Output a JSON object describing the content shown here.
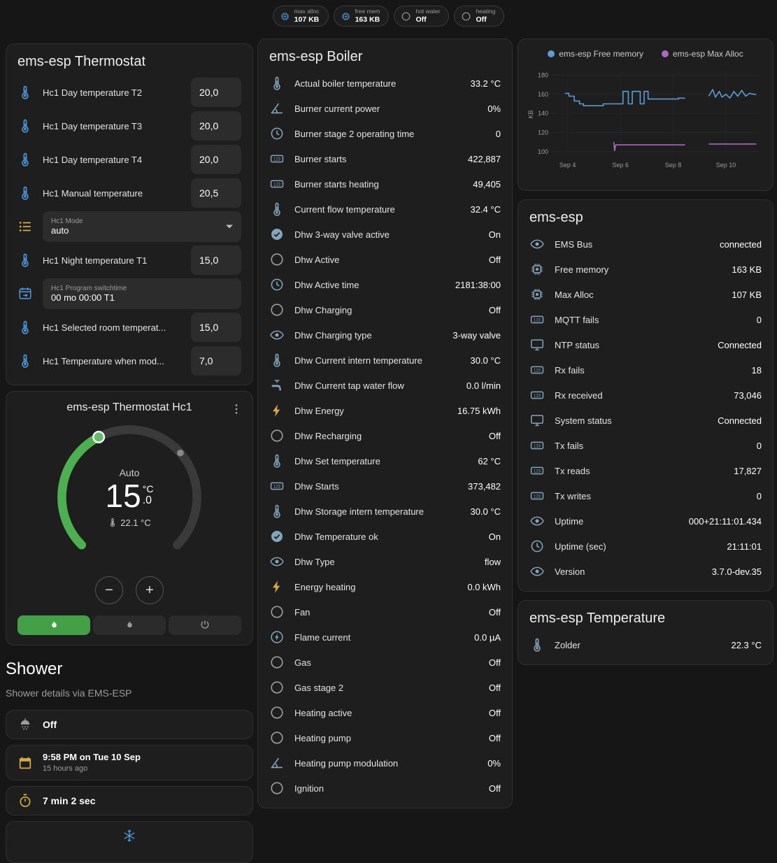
{
  "colors": {
    "icon_blue": "#4d9be0",
    "icon_muted": "#85a5bd",
    "icon_gray": "#9b9b9b",
    "icon_amber": "#d9ab42",
    "accent_green": "#43a047",
    "dial_green": "#4caf50",
    "chart_blue": "#5c9bd6",
    "chart_purple": "#aa68c2"
  },
  "topbar": {
    "chips": [
      {
        "icon": "chip",
        "c": "blue",
        "label": "max alloc",
        "value": "107 KB"
      },
      {
        "icon": "chip",
        "c": "blue",
        "label": "free mem",
        "value": "163 KB"
      },
      {
        "icon": "circle",
        "c": "gray",
        "label": "hot water",
        "value": "Off"
      },
      {
        "icon": "circle",
        "c": "gray",
        "label": "heating",
        "value": "Off"
      }
    ]
  },
  "thermostat_card": {
    "title": "ems-esp Thermostat",
    "rows": [
      {
        "type": "number",
        "icon": "thermometer",
        "c": "blue",
        "label": "Hc1 Day temperature T2",
        "value": "20,0"
      },
      {
        "type": "number",
        "icon": "thermometer",
        "c": "blue",
        "label": "Hc1 Day temperature T3",
        "value": "20,0"
      },
      {
        "type": "number",
        "icon": "thermometer",
        "c": "blue",
        "label": "Hc1 Day temperature T4",
        "value": "20,0"
      },
      {
        "type": "number",
        "icon": "thermometer",
        "c": "blue",
        "label": "Hc1 Manual temperature",
        "value": "20,5"
      },
      {
        "type": "select",
        "icon": "list",
        "c": "amber",
        "field_label": "Hc1 Mode",
        "value": "auto"
      },
      {
        "type": "number",
        "icon": "thermometer",
        "c": "blue",
        "label": "Hc1 Night temperature T1",
        "value": "15,0"
      },
      {
        "type": "text",
        "icon": "program",
        "c": "blue",
        "field_label": "Hc1 Program switchtime",
        "value": "00 mo 00:00 T1"
      },
      {
        "type": "number",
        "icon": "thermometer",
        "c": "blue",
        "label": "Hc1 Selected room temperat...",
        "value": "15,0"
      },
      {
        "type": "number",
        "icon": "thermometer",
        "c": "blue",
        "label": "Hc1 Temperature when mod...",
        "value": "7,0"
      }
    ]
  },
  "hc1_card": {
    "title": "ems-esp Thermostat Hc1",
    "mode_label": "Auto",
    "target_whole": "15",
    "target_unit": "°C",
    "target_decimal": ".0",
    "current_temperature": "22.1 °C",
    "modes": [
      {
        "name": "auto",
        "icon": "flame",
        "active": true
      },
      {
        "name": "heat",
        "icon": "flame",
        "active": false
      },
      {
        "name": "off",
        "icon": "power",
        "active": false
      }
    ]
  },
  "shower": {
    "title": "Shower",
    "subtitle": "Shower details via EMS-ESP",
    "state": "Off",
    "last_time": "9:58 PM on Tue 10 Sep",
    "last_relative": "15 hours ago",
    "duration": "7 min 2 sec"
  },
  "boiler": {
    "title": "ems-esp Boiler",
    "rows": [
      {
        "icon": "thermometer",
        "c": "muted",
        "label": "Actual boiler temperature",
        "value": "33.2 °C"
      },
      {
        "icon": "angle",
        "c": "muted",
        "label": "Burner current power",
        "value": "0%"
      },
      {
        "icon": "clock",
        "c": "muted",
        "label": "Burner stage 2 operating time",
        "value": "0"
      },
      {
        "icon": "counter",
        "c": "muted",
        "label": "Burner starts",
        "value": "422,887"
      },
      {
        "icon": "counter",
        "c": "muted",
        "label": "Burner starts heating",
        "value": "49,405"
      },
      {
        "icon": "thermometer",
        "c": "muted",
        "label": "Current flow temperature",
        "value": "32.4 °C"
      },
      {
        "icon": "check-circle",
        "c": "muted",
        "label": "Dhw 3-way valve active",
        "value": "On"
      },
      {
        "icon": "circle",
        "c": "gray",
        "label": "Dhw Active",
        "value": "Off"
      },
      {
        "icon": "clock",
        "c": "muted",
        "label": "Dhw Active time",
        "value": "2181:38:00"
      },
      {
        "icon": "circle",
        "c": "gray",
        "label": "Dhw Charging",
        "value": "Off"
      },
      {
        "icon": "eye",
        "c": "muted",
        "label": "Dhw Charging type",
        "value": "3-way valve"
      },
      {
        "icon": "thermometer",
        "c": "muted",
        "label": "Dhw Current intern temperature",
        "value": "30.0 °C"
      },
      {
        "icon": "tap",
        "c": "muted",
        "label": "Dhw Current tap water flow",
        "value": "0.0 l/min"
      },
      {
        "icon": "bolt",
        "c": "amber",
        "label": "Dhw Energy",
        "value": "16.75 kWh"
      },
      {
        "icon": "circle",
        "c": "gray",
        "label": "Dhw Recharging",
        "value": "Off"
      },
      {
        "icon": "thermometer",
        "c": "muted",
        "label": "Dhw Set temperature",
        "value": "62 °C"
      },
      {
        "icon": "counter",
        "c": "muted",
        "label": "Dhw Starts",
        "value": "373,482"
      },
      {
        "icon": "thermometer",
        "c": "muted",
        "label": "Dhw Storage intern temperature",
        "value": "30.0 °C"
      },
      {
        "icon": "check-circle",
        "c": "muted",
        "label": "Dhw Temperature ok",
        "value": "On"
      },
      {
        "icon": "eye",
        "c": "muted",
        "label": "Dhw Type",
        "value": "flow"
      },
      {
        "icon": "bolt",
        "c": "amber",
        "label": "Energy heating",
        "value": "0.0 kWh"
      },
      {
        "icon": "circle",
        "c": "gray",
        "label": "Fan",
        "value": "Off"
      },
      {
        "icon": "flash-circle",
        "c": "muted",
        "label": "Flame current",
        "value": "0.0 µA"
      },
      {
        "icon": "circle",
        "c": "gray",
        "label": "Gas",
        "value": "Off"
      },
      {
        "icon": "circle",
        "c": "gray",
        "label": "Gas stage 2",
        "value": "Off"
      },
      {
        "icon": "circle",
        "c": "gray",
        "label": "Heating active",
        "value": "Off"
      },
      {
        "icon": "circle",
        "c": "gray",
        "label": "Heating pump",
        "value": "Off"
      },
      {
        "icon": "angle",
        "c": "muted",
        "label": "Heating pump modulation",
        "value": "0%"
      },
      {
        "icon": "circle",
        "c": "gray",
        "label": "Ignition",
        "value": "Off"
      }
    ]
  },
  "device": {
    "title": "ems-esp",
    "rows": [
      {
        "icon": "eye",
        "c": "muted",
        "label": "EMS Bus",
        "value": "connected"
      },
      {
        "icon": "chip",
        "c": "muted",
        "label": "Free memory",
        "value": "163 KB"
      },
      {
        "icon": "chip",
        "c": "muted",
        "label": "Max Alloc",
        "value": "107 KB"
      },
      {
        "icon": "counter",
        "c": "muted",
        "label": "MQTT fails",
        "value": "0"
      },
      {
        "icon": "monitor",
        "c": "muted",
        "label": "NTP status",
        "value": "Connected"
      },
      {
        "icon": "counter",
        "c": "muted",
        "label": "Rx fails",
        "value": "18"
      },
      {
        "icon": "counter",
        "c": "muted",
        "label": "Rx received",
        "value": "73,046"
      },
      {
        "icon": "monitor",
        "c": "muted",
        "label": "System status",
        "value": "Connected"
      },
      {
        "icon": "counter",
        "c": "muted",
        "label": "Tx fails",
        "value": "0"
      },
      {
        "icon": "counter",
        "c": "muted",
        "label": "Tx reads",
        "value": "17,827"
      },
      {
        "icon": "counter",
        "c": "muted",
        "label": "Tx writes",
        "value": "0"
      },
      {
        "icon": "eye",
        "c": "muted",
        "label": "Uptime",
        "value": "000+21:11:01.434"
      },
      {
        "icon": "clock",
        "c": "muted",
        "label": "Uptime (sec)",
        "value": "21:11:01"
      },
      {
        "icon": "eye",
        "c": "muted",
        "label": "Version",
        "value": "3.7.0-dev.35"
      }
    ]
  },
  "temperature_card": {
    "title": "ems-esp Temperature",
    "rows": [
      {
        "icon": "thermometer",
        "c": "muted",
        "label": "Zolder",
        "value": "22.3 °C"
      }
    ]
  },
  "chart_data": {
    "type": "line",
    "ylabel": "KB",
    "ylim": [
      94,
      184
    ],
    "yticks": [
      100,
      120,
      140,
      160,
      180
    ],
    "xlim": [
      3.4,
      11.3
    ],
    "xticks": [
      {
        "x": 4,
        "label": "Sep 4"
      },
      {
        "x": 6,
        "label": "Sep 6"
      },
      {
        "x": 8,
        "label": "Sep 8"
      },
      {
        "x": 10,
        "label": "Sep 10"
      }
    ],
    "legend_position": "top",
    "grid": true,
    "series": [
      {
        "name": "ems-esp Free memory",
        "color": "#5c9bd6",
        "segments": [
          [
            [
              3.9,
              161
            ],
            [
              4.05,
              161
            ],
            [
              4.05,
              158
            ],
            [
              4.25,
              158
            ],
            [
              4.25,
              153
            ],
            [
              4.45,
              153
            ],
            [
              4.45,
              150
            ],
            [
              4.6,
              150
            ],
            [
              4.6,
              148
            ],
            [
              5.35,
              148
            ],
            [
              5.35,
              150
            ],
            [
              6.1,
              150
            ],
            [
              6.1,
              163
            ],
            [
              6.3,
              163
            ],
            [
              6.3,
              150
            ],
            [
              6.45,
              150
            ],
            [
              6.45,
              163
            ],
            [
              6.75,
              163
            ],
            [
              6.75,
              150
            ],
            [
              6.9,
              150
            ],
            [
              6.9,
              163
            ],
            [
              7.05,
              163
            ],
            [
              7.05,
              155
            ],
            [
              8.2,
              155
            ],
            [
              8.2,
              156
            ],
            [
              8.45,
              156
            ]
          ],
          [
            [
              9.35,
              158
            ],
            [
              9.5,
              165
            ],
            [
              9.6,
              157
            ],
            [
              9.75,
              163
            ],
            [
              9.85,
              157
            ],
            [
              10.0,
              160
            ],
            [
              10.15,
              156
            ],
            [
              10.3,
              163
            ],
            [
              10.45,
              158
            ],
            [
              10.6,
              164
            ],
            [
              10.75,
              158
            ],
            [
              10.9,
              161
            ],
            [
              11.05,
              160
            ],
            [
              11.15,
              160
            ]
          ]
        ]
      },
      {
        "name": "ems-esp Max Alloc",
        "color": "#aa68c2",
        "segments": [
          [
            [
              5.75,
              110
            ],
            [
              5.78,
              101
            ],
            [
              5.82,
              107
            ],
            [
              8.45,
              107
            ]
          ],
          [
            [
              9.35,
              108
            ],
            [
              11.15,
              108
            ]
          ]
        ]
      }
    ]
  }
}
